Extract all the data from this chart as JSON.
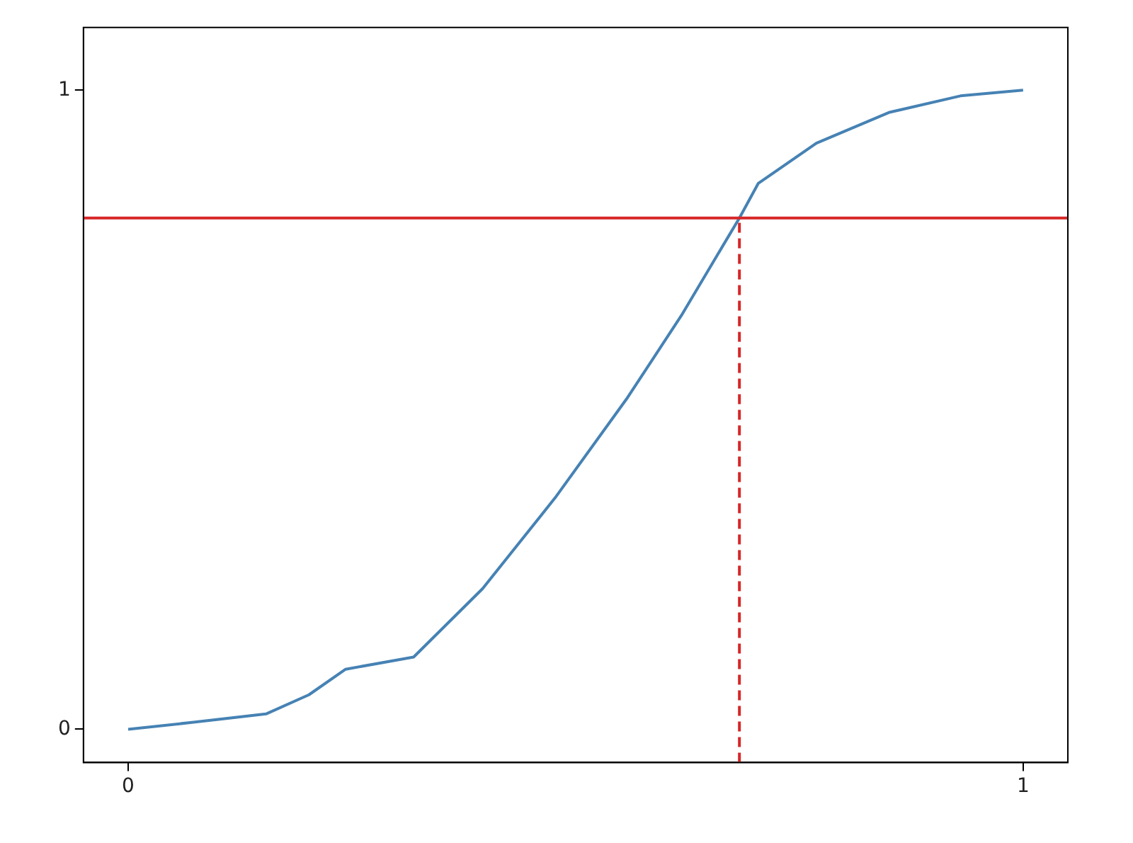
{
  "chart_data": {
    "type": "line",
    "x": [
      0,
      0.073,
      0.154,
      0.202,
      0.243,
      0.319,
      0.396,
      0.477,
      0.558,
      0.618,
      0.683,
      0.704,
      0.769,
      0.85,
      0.93,
      1
    ],
    "series": [
      {
        "color": "#4682b4",
        "values": [
          0,
          0.011,
          0.024,
          0.054,
          0.094,
          0.113,
          0.22,
          0.362,
          0.519,
          0.647,
          0.8,
          0.854,
          0.917,
          0.965,
          0.991,
          1
        ]
      },
      {
        "type": "line",
        "color": "#d62728",
        "line_style": "dashed",
        "x": [
          0.683,
          0.683
        ],
        "values": [
          -0.052,
          0.8
        ]
      }
    ],
    "ref_lines": [
      {
        "axis": "y",
        "value": 0.8,
        "color": "#d62728"
      }
    ],
    "xlim": [
      -0.05,
      1.05
    ],
    "ylim": [
      -0.052,
      1.098
    ],
    "xticks": [
      0,
      1
    ],
    "yticks": [
      0,
      1
    ],
    "grid": false,
    "legend": false,
    "marker": "none",
    "line_style": "solid"
  }
}
